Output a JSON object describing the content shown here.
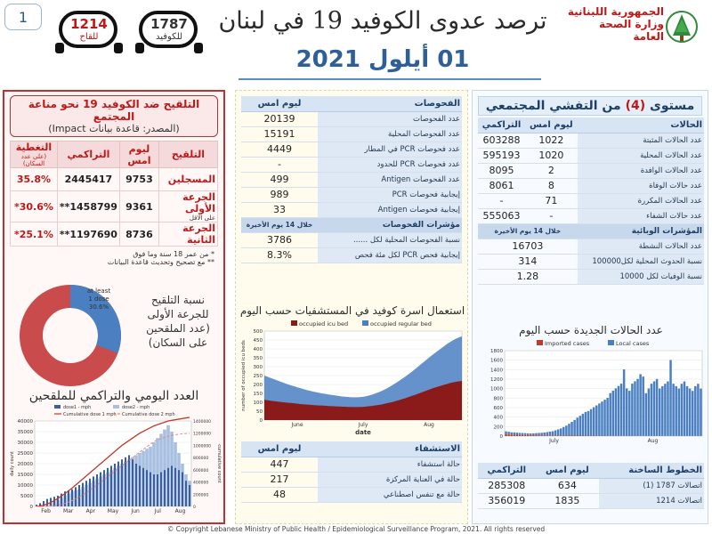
{
  "page_number": "1",
  "header": {
    "title": "ترصد عدوى الكوفيد 19 في لبنان",
    "date": "01 أيلول 2021",
    "ministry_line1": "الجمهورية اللبنانية",
    "ministry_line2": "وزارة الصحة العامة",
    "hotline_covid": {
      "number": "1787",
      "caption": "للكوفيد"
    },
    "hotline_vaccine": {
      "number": "1214",
      "caption": "للقاح"
    }
  },
  "vaccination": {
    "title_line1": "التلقيح ضد الكوفيد 19  نحو مناعة المجتمع",
    "title_line2": "(المصدر: قاعدة بيانات Impact)",
    "headers": {
      "vaccination": "التلقيح",
      "yesterday": "ليوم امس",
      "cumulative": "التراكمي",
      "coverage": "التغطية",
      "coverage_note": "(على عدد السكان)"
    },
    "rows": [
      {
        "label": "المسجلين",
        "sub": "",
        "yesterday": "9753",
        "cumulative": "2445417",
        "coverage": "35.8%"
      },
      {
        "label": "الجرعة الأولى",
        "sub": "على الاقل",
        "yesterday": "9361",
        "cumulative": "1458799**",
        "coverage": "30.6%*"
      },
      {
        "label": "الجرعة الثانية",
        "sub": "",
        "yesterday": "8736",
        "cumulative": "1197690**",
        "coverage": "25.1%*"
      }
    ],
    "note1": "* من عمر 18 سنة وما فوق",
    "note2": "** مع تصحيح وتحديث قاعدة البيانات",
    "donut_caption": [
      "نسبة التلقيح",
      "للجرعة الأولى",
      "(عدد الملقحين",
      "على السكان)"
    ],
    "donut_label": [
      "at least",
      "1 dose",
      "30.6%"
    ],
    "donut_fraction": 0.306,
    "daily_title": "العدد اليومي والتراكمي للملقحين",
    "accent": "#c01818"
  },
  "tests": {
    "header_label": "الفحوصات",
    "header_value": "ليوم امس",
    "rows": [
      {
        "label": "عدد الفحوصات",
        "value": "20139"
      },
      {
        "label": "عدد الفحوصات المحلية",
        "value": "15191"
      },
      {
        "label": "عدد فحوصات PCR في المطار",
        "value": "4449"
      },
      {
        "label": "عدد فحوصات PCR للحدود",
        "value": "-"
      },
      {
        "label": "عدد الفحوصات Antigen",
        "value": "499"
      },
      {
        "label": "إيجابية فحوصات PCR",
        "value": "989"
      },
      {
        "label": "إيجابية فحوصات Antigen",
        "value": "33"
      }
    ],
    "section": {
      "label": "مؤشرات الفحوصات",
      "value": "خلال 14 يوم الأخيرة"
    },
    "indicators": [
      {
        "label": "نسبة الفحوصات المحلية لكل ......",
        "value": "3786"
      },
      {
        "label": "إيجابية فحص PCR لكل مئة فحص",
        "value": "8.3%"
      }
    ]
  },
  "hospital_table": {
    "header_label": "الاستشفاء",
    "header_value": "ليوم امس",
    "rows": [
      {
        "label": "حالة استشفاء",
        "value": "447"
      },
      {
        "label": "حالة في العناية المركزة",
        "value": "217"
      },
      {
        "label": "حالة مع تنفس اصطناعي",
        "value": "48"
      }
    ]
  },
  "cases": {
    "level_title": "مستوى",
    "level_value": "(4)",
    "level_suffix": "من التفشي المجتمعي",
    "headers": {
      "label": "الحالات",
      "yesterday": "ليوم امس",
      "cumulative": "التراكمي"
    },
    "rows": [
      {
        "label": "عدد الحالات المثبتة",
        "yesterday": "1022",
        "cumulative": "603288"
      },
      {
        "label": "عدد الحالات المحلية",
        "yesterday": "1020",
        "cumulative": "595193"
      },
      {
        "label": "عدد الحالات الوافدة",
        "yesterday": "2",
        "cumulative": "8095"
      },
      {
        "label": "عدد حالات الوفاة",
        "yesterday": "8",
        "cumulative": "8061"
      },
      {
        "label": "عدد الحالات المكررة",
        "yesterday": "71",
        "cumulative": "-"
      },
      {
        "label": "عدد حالات الشفاء",
        "yesterday": "-",
        "cumulative": "555063"
      }
    ],
    "epi_header": {
      "label": "المؤشرات الوبائية",
      "value": "خلال 14 يوم الأخيرة"
    },
    "epi_rows": [
      {
        "label": "عدد الحالات النشطة",
        "value": "16703"
      },
      {
        "label": "نسبة الحدوث المحلية لكل100000",
        "value": "314"
      },
      {
        "label": "نسبة الوفيات لكل 10000",
        "value": "1.28"
      }
    ]
  },
  "hotlines_table": {
    "headers": {
      "label": "الخطوط الساخنة",
      "yesterday": "ليوم امس",
      "cumulative": "التراكمي"
    },
    "rows": [
      {
        "label": "اتصالات 1787 (1)",
        "yesterday": "634",
        "cumulative": "285308"
      },
      {
        "label": "اتصالات 1214",
        "yesterday": "1835",
        "cumulative": "356019"
      }
    ]
  },
  "copyright": "© Copyright Lebanese Ministry of Public Health / Epidemiological Surveillance Program, 2021. All rights reserved",
  "chart_data": [
    {
      "type": "area",
      "title": "استعمال اسرة كوفيد في المستشفيات حسب اليوم",
      "xlabel": "date",
      "ylabel": "number of occupied icu beds",
      "ylim": [
        0,
        500
      ],
      "yticks": [
        0,
        50,
        100,
        150,
        200,
        250,
        300,
        350,
        400,
        450,
        500
      ],
      "xticks": [
        "June",
        "July",
        "Aug"
      ],
      "legend": "top",
      "series": [
        {
          "name": "occupied icu bed",
          "color": "#8b1a1a",
          "values": [
            115,
            112,
            110,
            108,
            106,
            105,
            103,
            102,
            100,
            99,
            97,
            96,
            95,
            94,
            92,
            90,
            89,
            88,
            87,
            86,
            85,
            84,
            83,
            82,
            82,
            81,
            80,
            79,
            78,
            78,
            77,
            76,
            76,
            75,
            75,
            74,
            74,
            74,
            73,
            73,
            74,
            74,
            75,
            76,
            78,
            79,
            81,
            83,
            85,
            87,
            90,
            93,
            96,
            99,
            102,
            106,
            110,
            114,
            118,
            122,
            127,
            131,
            136,
            140,
            145,
            150,
            155,
            160,
            165,
            170,
            175,
            180,
            184,
            188,
            192,
            196,
            200,
            204,
            208,
            211,
            214,
            216,
            218,
            220
          ]
        },
        {
          "name": "occupied regular bed",
          "color": "#4a7fc1",
          "values": [
            250,
            245,
            240,
            235,
            230,
            225,
            220,
            215,
            210,
            205,
            200,
            196,
            192,
            188,
            184,
            180,
            176,
            172,
            168,
            165,
            162,
            159,
            156,
            153,
            150,
            148,
            146,
            144,
            142,
            140,
            138,
            136,
            134,
            132,
            131,
            130,
            129,
            128,
            128,
            128,
            129,
            130,
            132,
            135,
            138,
            142,
            146,
            151,
            156,
            162,
            168,
            175,
            182,
            190,
            198,
            206,
            215,
            224,
            233,
            242,
            252,
            262,
            272,
            283,
            294,
            305,
            316,
            327,
            338,
            349,
            360,
            370,
            380,
            390,
            400,
            410,
            420,
            430,
            438,
            446,
            454,
            460,
            466,
            470
          ]
        }
      ]
    },
    {
      "type": "bar",
      "title": "عدد الحالات الجديدة حسب اليوم",
      "ylim": [
        0,
        1800
      ],
      "yticks": [
        0,
        200,
        400,
        600,
        800,
        1000,
        1200,
        1400,
        1600,
        1800
      ],
      "xticks": [
        "July",
        "Aug"
      ],
      "legend": "top",
      "series": [
        {
          "name": "Imported cases",
          "color": "#c0392b",
          "values": [
            40,
            35,
            30,
            30,
            28,
            25,
            25,
            22,
            20,
            20,
            18,
            18,
            16,
            15,
            15,
            14,
            14,
            13,
            12,
            12,
            12,
            11,
            11,
            10,
            10,
            10,
            9,
            9,
            9,
            8,
            8,
            8,
            8,
            7,
            7,
            7,
            7,
            6,
            6,
            6,
            6,
            6,
            5,
            5,
            5,
            5,
            5,
            5,
            4,
            4,
            4,
            4,
            4,
            4,
            4,
            3,
            3,
            3,
            3,
            3,
            3,
            3,
            3,
            2,
            2,
            2,
            2,
            2,
            2,
            2,
            2,
            2
          ]
        },
        {
          "name": "Local cases",
          "color": "#4a7fc1",
          "values": [
            60,
            55,
            50,
            48,
            45,
            42,
            40,
            40,
            38,
            36,
            40,
            45,
            50,
            55,
            60,
            70,
            80,
            90,
            110,
            130,
            150,
            180,
            210,
            250,
            290,
            330,
            380,
            420,
            460,
            500,
            520,
            560,
            600,
            640,
            680,
            720,
            760,
            800,
            900,
            950,
            1000,
            1050,
            1100,
            1400,
            1000,
            950,
            1100,
            1150,
            1200,
            1300,
            1250,
            900,
            1000,
            1100,
            1150,
            1200,
            1000,
            1050,
            1100,
            1150,
            1600,
            1100,
            1050,
            1000,
            1100,
            1150,
            1050,
            1000,
            950,
            1050,
            1100,
            1000
          ]
        }
      ]
    },
    {
      "type": "bar",
      "title": "العدد اليومي والتراكمي للملقحين",
      "ylabel": "daily count",
      "y2label": "cumulative count",
      "ylim": [
        0,
        40000
      ],
      "yticks": [
        0,
        5000,
        10000,
        15000,
        20000,
        25000,
        30000,
        35000,
        40000
      ],
      "y2lim": [
        0,
        1400000
      ],
      "y2ticks": [
        0,
        200000,
        400000,
        600000,
        800000,
        1000000,
        1200000,
        1400000
      ],
      "xticks": [
        "Feb",
        "Mar",
        "Apr",
        "May",
        "Jun",
        "Jul",
        "Aug"
      ],
      "legend": "top",
      "series": [
        {
          "name": "dose1 - mph",
          "color": "#3a5f9a",
          "values": [
            800,
            1500,
            2500,
            3500,
            4000,
            4500,
            5000,
            6000,
            7000,
            7500,
            8000,
            9000,
            10000,
            11000,
            12000,
            13000,
            14000,
            15000,
            16000,
            17000,
            18000,
            19000,
            20000,
            21000,
            22000,
            23000,
            24000,
            22000,
            20000,
            19000,
            18000,
            17000,
            16000,
            15000,
            15000,
            16000,
            17000,
            18000,
            19000,
            18000,
            17000,
            16000,
            12000,
            10000
          ]
        },
        {
          "name": "dose2 - mph",
          "color": "#a7bfe0",
          "values": [
            0,
            0,
            0,
            500,
            1500,
            2500,
            3000,
            4000,
            5000,
            6000,
            7000,
            7500,
            8000,
            9000,
            10000,
            11000,
            12000,
            13000,
            14000,
            15000,
            16000,
            17000,
            18000,
            19000,
            20000,
            21000,
            22000,
            23000,
            24000,
            25000,
            26000,
            27000,
            28000,
            30000,
            32000,
            34000,
            36000,
            38000,
            35000,
            30000,
            25000,
            20000,
            15000,
            12000
          ]
        },
        {
          "name": "Cumulative dose 1 mph",
          "color": "#c0392b",
          "values": [
            2000,
            8000,
            20000,
            40000,
            65000,
            95000,
            130000,
            170000,
            210000,
            255000,
            300000,
            350000,
            400000,
            450000,
            500000,
            550000,
            600000,
            650000,
            700000,
            750000,
            800000,
            850000,
            900000,
            950000,
            1000000,
            1040000,
            1080000,
            1120000,
            1160000,
            1200000,
            1230000,
            1260000,
            1290000,
            1320000,
            1340000,
            1360000,
            1380000,
            1400000,
            1410000,
            1420000,
            1430000,
            1440000,
            1450000,
            1458799
          ]
        },
        {
          "name": "Cumulative dose 2 mph",
          "color": "#e88a80",
          "values": [
            0,
            0,
            0,
            1000,
            5000,
            12000,
            22000,
            35000,
            50000,
            70000,
            95000,
            125000,
            155000,
            190000,
            225000,
            265000,
            305000,
            350000,
            395000,
            440000,
            485000,
            530000,
            575000,
            620000,
            665000,
            710000,
            755000,
            800000,
            845000,
            890000,
            935000,
            980000,
            1020000,
            1060000,
            1090000,
            1110000,
            1130000,
            1150000,
            1165000,
            1175000,
            1183000,
            1189000,
            1194000,
            1197690
          ]
        }
      ]
    }
  ]
}
